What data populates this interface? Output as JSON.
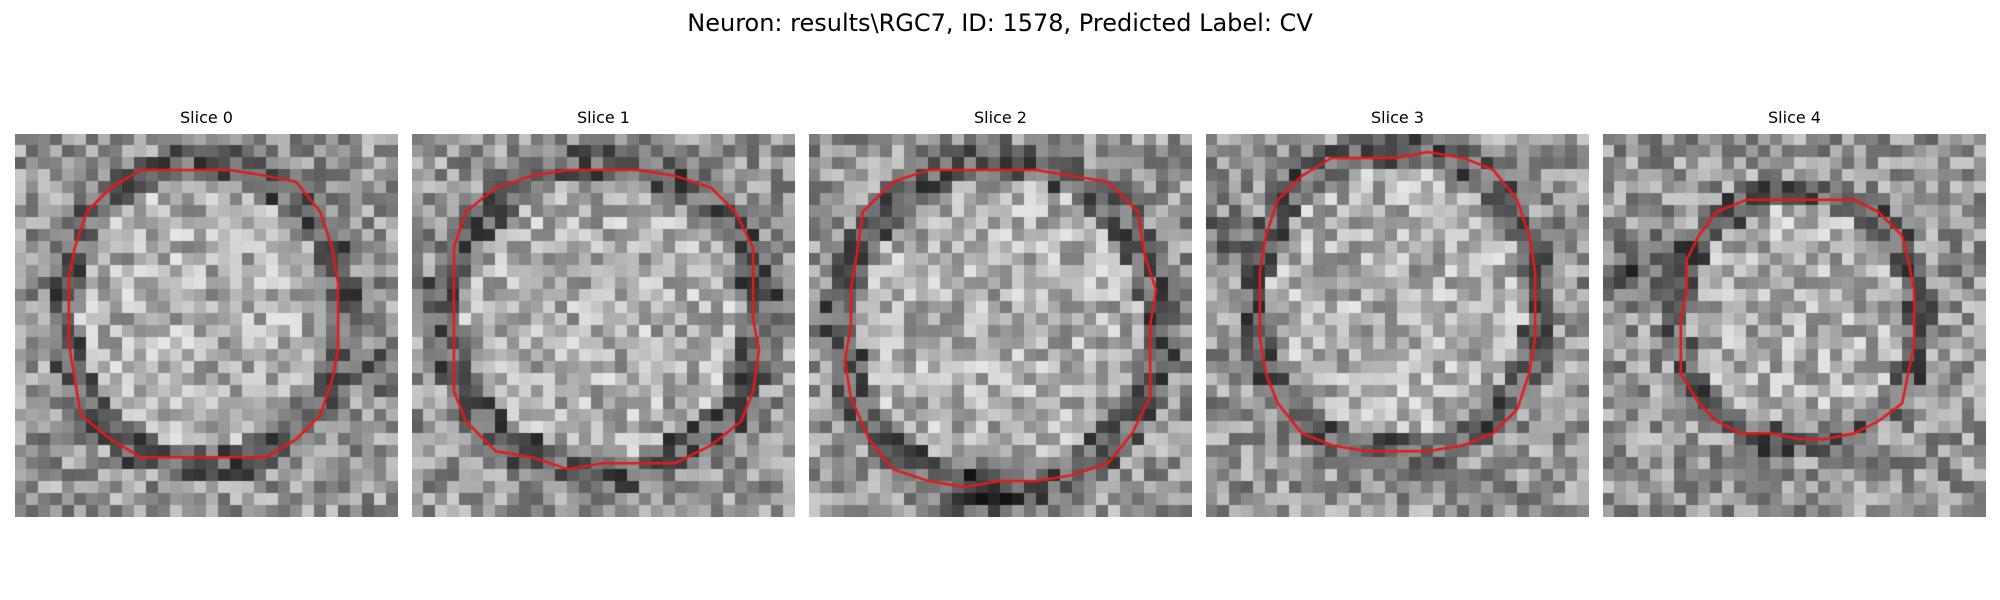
{
  "figure": {
    "title": "Neuron: results\\RGC7, ID: 1578, Predicted Label: CV"
  },
  "panels": [
    {
      "title": "Slice 0"
    },
    {
      "title": "Slice 1"
    },
    {
      "title": "Slice 2"
    },
    {
      "title": "Slice 3"
    },
    {
      "title": "Slice 4"
    }
  ],
  "colors": {
    "contour": "#e31a1c",
    "background": "#ffffff"
  }
}
